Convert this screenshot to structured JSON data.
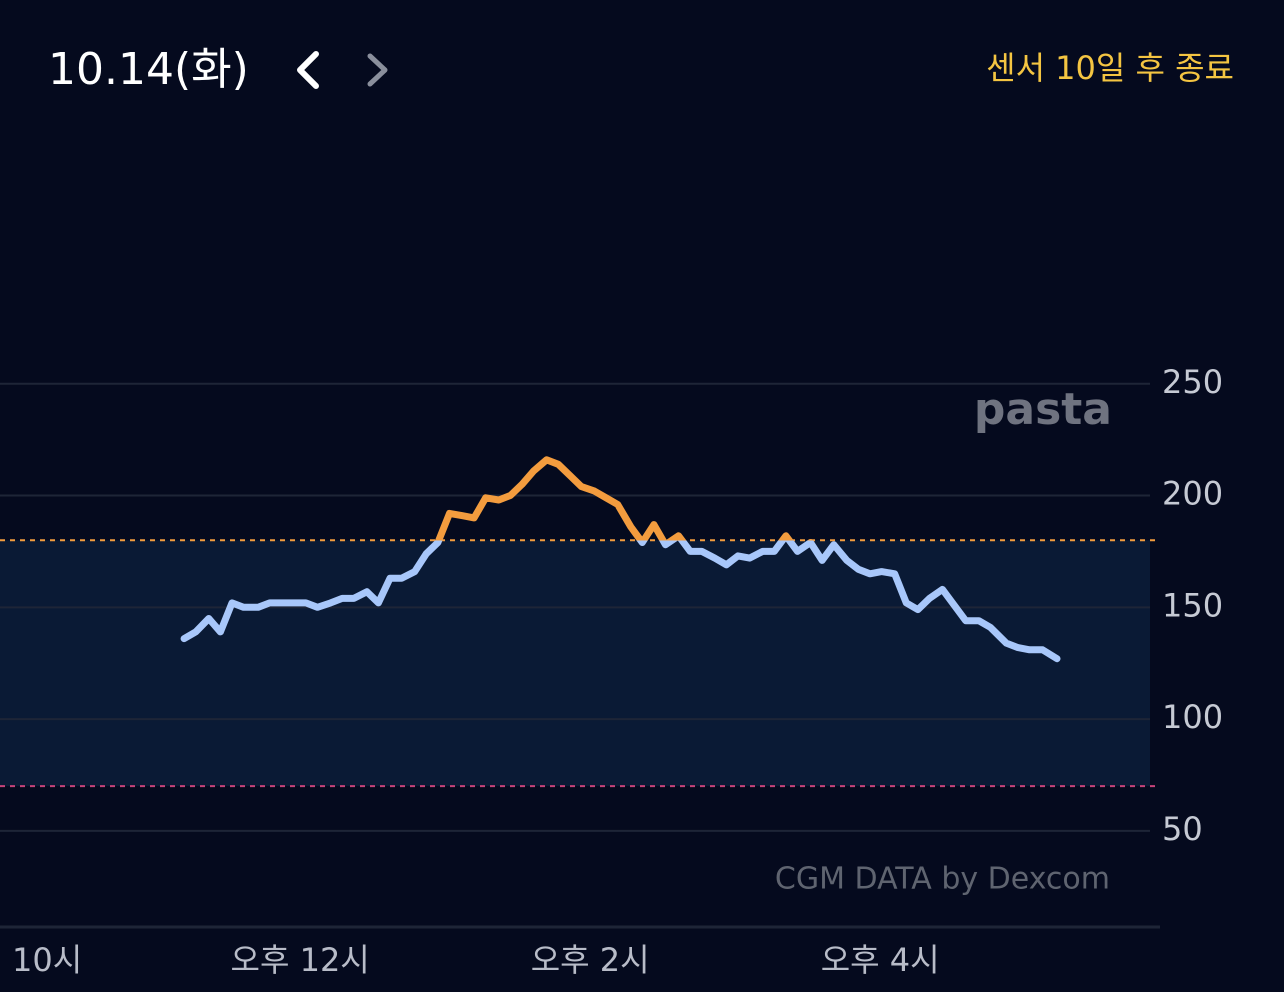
{
  "header": {
    "date": "10.14(화)",
    "sensor_status": "센서 10일 후 종료"
  },
  "chart_data": {
    "type": "line",
    "watermark": "pasta",
    "source": "CGM DATA by Dexcom",
    "x": [
      11.2,
      11.28,
      11.37,
      11.45,
      11.53,
      11.61,
      11.71,
      11.79,
      11.88,
      11.96,
      12.04,
      12.12,
      12.21,
      12.29,
      12.37,
      12.46,
      12.54,
      12.62,
      12.7,
      12.79,
      12.87,
      12.95,
      13.03,
      13.12,
      13.2,
      13.28,
      13.37,
      13.45,
      13.53,
      13.61,
      13.7,
      13.78,
      13.86,
      13.94,
      14.03,
      14.11,
      14.19,
      14.28,
      14.36,
      14.44,
      14.52,
      14.61,
      14.69,
      14.77,
      14.86,
      14.94,
      15.02,
      15.1,
      15.19,
      15.27,
      15.35,
      15.43,
      15.52,
      15.6,
      15.68,
      15.77,
      15.85,
      15.93,
      16.01,
      16.1,
      16.18,
      16.26,
      16.34,
      16.43,
      16.51,
      16.59,
      16.68,
      16.76,
      16.87,
      16.95,
      17.03,
      17.12,
      17.22
    ],
    "values": [
      136,
      139,
      145,
      139,
      152,
      150,
      150,
      152,
      152,
      152,
      152,
      150,
      152,
      154,
      154,
      157,
      152,
      163,
      163,
      166,
      174,
      179,
      192,
      191,
      190,
      199,
      198,
      200,
      205,
      211,
      216,
      214,
      209,
      204,
      202,
      199,
      196,
      186,
      179,
      187,
      178,
      182,
      175,
      175,
      172,
      169,
      173,
      172,
      175,
      175,
      182,
      175,
      179,
      171,
      178,
      171,
      167,
      165,
      166,
      165,
      152,
      149,
      154,
      158,
      151,
      144,
      144,
      141,
      134,
      132,
      131,
      131,
      127
    ],
    "color": "#a8c7fa",
    "high_color": "#f39c3e",
    "high_threshold": 180,
    "low_threshold": 70,
    "low_color": "#c8447a",
    "range_fill": "#0a1a35",
    "xlim": [
      9.93,
      17.93
    ],
    "xticks": [
      {
        "value": 10,
        "label": "10시"
      },
      {
        "value": 12,
        "label": "오후 12시"
      },
      {
        "value": 14,
        "label": "오후 2시"
      },
      {
        "value": 16,
        "label": "오후 4시"
      }
    ],
    "ylim": [
      7,
      300
    ],
    "yticks": [
      50,
      100,
      150,
      200,
      250
    ],
    "grid": true
  }
}
